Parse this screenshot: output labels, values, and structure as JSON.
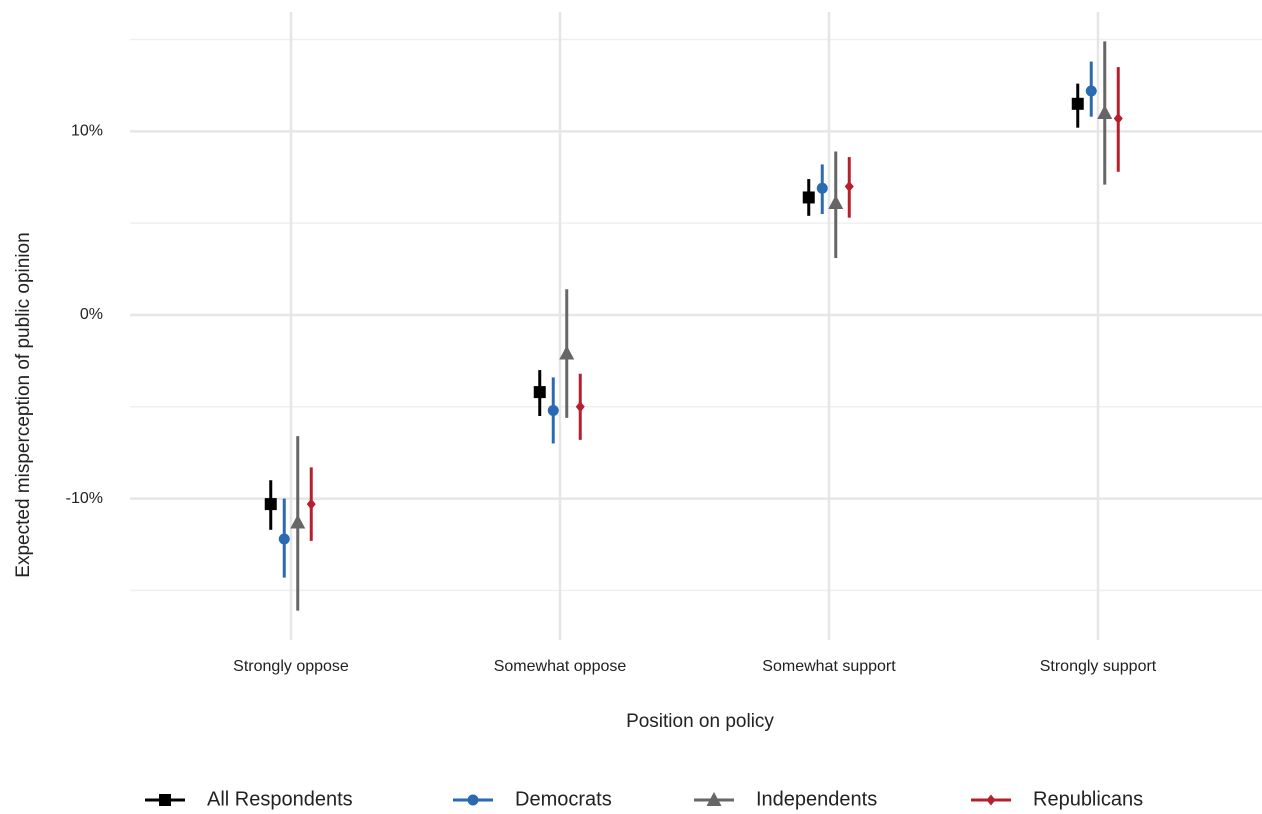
{
  "chart_data": {
    "type": "pointrange",
    "x_label": "Position on policy",
    "y_label": "Expected misperception of public opinion",
    "categories": [
      "Strongly oppose",
      "Somewhat oppose",
      "Somewhat support",
      "Strongly support"
    ],
    "ylim": [
      -17.7,
      16.5
    ],
    "yticks": [
      {
        "value": -10,
        "label": "-10%"
      },
      {
        "value": 0,
        "label": "0%"
      },
      {
        "value": 10,
        "label": "10%"
      }
    ],
    "minor_yticks": [
      -15,
      -5,
      5,
      15
    ],
    "grid": true,
    "legend_position": "bottom",
    "series": [
      {
        "name": "All Respondents",
        "color": "#000000",
        "marker": "square",
        "values": [
          -10.3,
          -4.2,
          6.4,
          11.5
        ],
        "lower": [
          -11.7,
          -5.5,
          5.4,
          10.2
        ],
        "upper": [
          -9.0,
          -3.0,
          7.4,
          12.6
        ]
      },
      {
        "name": "Democrats",
        "color": "#2a6ab3",
        "marker": "circle",
        "values": [
          -12.2,
          -5.2,
          6.9,
          12.2
        ],
        "lower": [
          -14.3,
          -7.0,
          5.5,
          10.8
        ],
        "upper": [
          -10.0,
          -3.4,
          8.2,
          13.8
        ]
      },
      {
        "name": "Independents",
        "color": "#666666",
        "marker": "triangle",
        "values": [
          -11.3,
          -2.1,
          6.1,
          11.0
        ],
        "lower": [
          -16.1,
          -5.6,
          3.1,
          7.1
        ],
        "upper": [
          -6.6,
          1.4,
          8.9,
          14.9
        ]
      },
      {
        "name": "Republicans",
        "color": "#b5202e",
        "marker": "diamond",
        "values": [
          -10.3,
          -5.0,
          7.0,
          10.7
        ],
        "lower": [
          -12.3,
          -6.8,
          5.3,
          7.8
        ],
        "upper": [
          -8.3,
          -3.2,
          8.6,
          13.5
        ]
      }
    ]
  }
}
